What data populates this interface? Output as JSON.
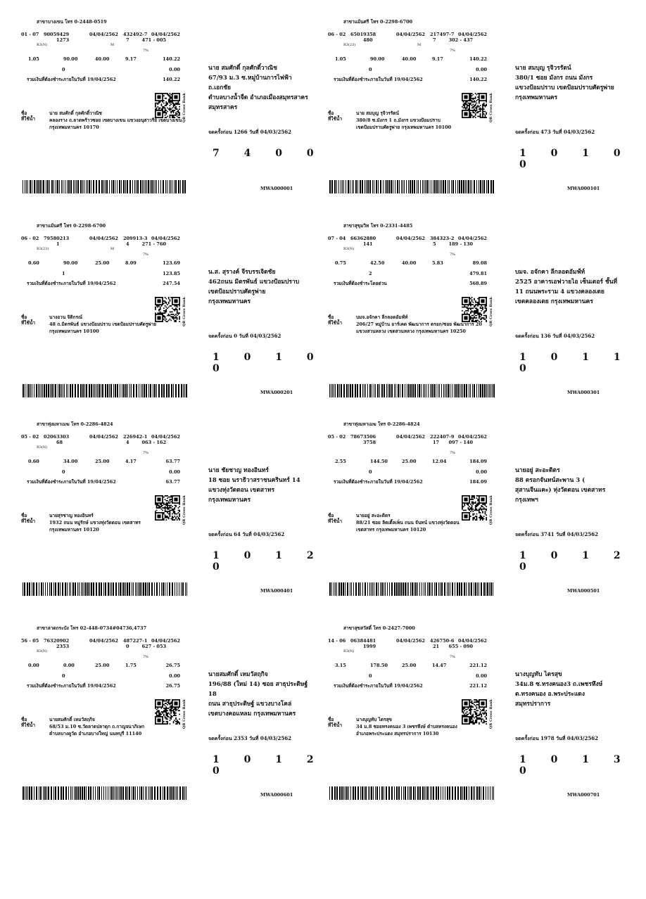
{
  "bills": [
    {
      "branch": "สาขาบางเขน โทร 0-2448-0519",
      "zone": "01 - 07",
      "meter_no": "90059429",
      "date1": "04/04/2562",
      "ref": "432492-7",
      "date2": "04/04/2562",
      "r2_a": "1273",
      "r2_b": "7",
      "r2_c": "471 - 005",
      "r3_code": "R3(N)",
      "r3_m": "M",
      "vat_pct": "7%",
      "usage": "1.05",
      "water": "90.00",
      "service": "40.00",
      "vat": "9.17",
      "total": "140.22",
      "arrear_n": "0",
      "arrear": "0.00",
      "due_label": "รวมเงินที่ต้องชำระภายในวันที่ 19/04/2562",
      "due_total": "140.22",
      "name_label": "ชื่อ",
      "addr_label": "ที่ใช้น้ำ",
      "name": "นาย สมศักดิ์ กุลศักดิ์วาณิช",
      "addr_line1": "คลองราง ถ.ลาดพร้าวซอย เขตบางเขน แขวงอนุสาวรีย์ เขตบางเขน",
      "addr_line2": "กรุงเทพมหานคร 10170",
      "qr_label": "QR Cross Bank",
      "mail_lines": [
        "นาย สมศักดิ์ กุลศักดิ์วาณิช",
        "67/93 ม.3 ซ.หมู่บ้านการไฟฟ้า ถ.เอกชัย",
        "ตำบลบางน้ำจืด อำเภอเมืองสมุทรสาคร",
        "สมุทรสาคร"
      ],
      "reading": "จดครั้งก่อน 1266 วันที่ 04/03/2562",
      "meter": "7400",
      "mwa": "MWA000001"
    },
    {
      "branch": "สาขาแม้นศรี โทร 0-2298-6700",
      "zone": "06 - 02",
      "meter_no": "65019358",
      "date1": "04/04/2562",
      "ref": "217497-7",
      "date2": "04/04/2562",
      "r2_a": "480",
      "r2_b": "7",
      "r2_c": "302 - 437",
      "r3_code": "R3(23)",
      "r3_m": "M",
      "vat_pct": "7%",
      "usage": "1.05",
      "water": "90.00",
      "service": "40.00",
      "vat": "9.17",
      "total": "140.22",
      "arrear_n": "0",
      "arrear": "0.00",
      "due_label": "รวมเงินที่ต้องชำระภายในวันที่ 19/04/2562",
      "due_total": "140.22",
      "name_label": "ชื่อ",
      "addr_label": "ที่ใช้น้ำ",
      "name": "นาย สมบุญ รุจิวรรัตน์",
      "addr_line1": "380/8 ซ.มังกร 1 ถ.มังกร แขวงป้อมปราบ",
      "addr_line2": "เขตป้อมปราบศัตรูพ่าย กรุงเทพมหานคร 10100",
      "qr_label": "QR Cross Bank",
      "mail_lines": [
        "นาย สมบุญ รุจิวรรัตน์",
        "380/1 ซอย มังกร ถนน มังกร",
        "แขวงป้อมปราบ เขตป้อมปราบศัตรูพ่าย",
        "กรุงเทพมหานคร"
      ],
      "reading": "จดครั้งก่อน 473 วันที่ 04/03/2562",
      "meter": "10100",
      "mwa": "MWA000101"
    },
    {
      "branch": "สาขาแม้นศรี โทร 0-2298-6700",
      "zone": "06 - 02",
      "meter_no": "79580213",
      "date1": "04/04/2562",
      "ref": "209913-3",
      "date2": "04/04/2562",
      "r2_a": "1",
      "r2_b": "4",
      "r2_c": "271 - 760",
      "r3_code": "R3(23)",
      "r3_m": "M",
      "vat_pct": "7%",
      "usage": "0.60",
      "water": "90.00",
      "service": "25.00",
      "vat": "8.09",
      "total": "123.69",
      "arrear_n": "1",
      "arrear": "123.85",
      "due_label": "รวมเงินที่ต้องชำระภายในวันที่ 19/04/2562",
      "due_total": "247.54",
      "name_label": "ชื่อ",
      "addr_label": "ที่ใช้น้ำ",
      "name": "นางอวน จิติกรณ์",
      "addr_line1": "48 ถ.มิตรพันธ์ แขวงป้อมปราบ เขตป้อมปราบศัตรูพ่าย",
      "addr_line2": "กรุงเทพมหานคร 10100",
      "qr_label": "QR Cross Bank",
      "mail_lines": [
        "น.ส. สุรางค์ จีรบรรเจิดชัย",
        "462ถนน มิตรพันธ์ แขวงป้อมปราบ",
        "เขตป้อมปราบศัตรูพ่าย",
        "กรุงเทพมหานคร"
      ],
      "reading": "จดครั้งก่อน 0 วันที่ 04/03/2562",
      "meter": "10100",
      "mwa": "MWA000201"
    },
    {
      "branch": "สาขาสุขุมวิท โทร 0-2331-4485",
      "zone": "07 - 04",
      "meter_no": "66362880",
      "date1": "04/04/2562",
      "ref": "384323-2",
      "date2": "04/04/2562",
      "r2_a": "141",
      "r2_b": "5",
      "r2_c": "189 - 130",
      "r3_code": "R3(N)",
      "r3_m": "",
      "vat_pct": "7%",
      "usage": "0.75",
      "water": "42.50",
      "service": "40.00",
      "vat": "5.83",
      "total": "89.08",
      "arrear_n": "2",
      "arrear": "479.81",
      "due_label": "รวมเงินที่ต้องชำระโดยด่วน",
      "due_total": "568.89",
      "name_label": "ชื่อ",
      "addr_label": "ที่ใช้น้ำ",
      "name": "บมจ.อจักคา ลีกลอดอัมฟ์ท์",
      "addr_line1": "206/27 หมู่บ้าน อาร์เคด พัฒนาการ ตรอก/ซอย พัฒนาการ 20",
      "addr_line2": "แขวงสวนหลวง เขตสวนหลวง กรุงเทพมหานคร 10250",
      "qr_label": "QR Cross Bank",
      "mail_lines": [
        "บมจ. อจักคา ลีกลอดอัมฟ์ท์",
        "2525 อาคารเอฟวายไอ เซ็นเตอร์ ชั้นที่",
        "11 ถนนพระราม 4 แขวงคลองเตย",
        "เขตคลองเตย กรุงเทพมหานคร"
      ],
      "reading": "จดครั้งก่อน 136 วันที่ 04/03/2562",
      "meter": "10110",
      "mwa": "MWA000301"
    },
    {
      "branch": "สาขาทุ่งมหาเมฆ โทร 0-2286-4824",
      "zone": "05 - 02",
      "meter_no": "02063303",
      "date1": "04/04/2562",
      "ref": "226942-1",
      "date2": "04/04/2562",
      "r2_a": "68",
      "r2_b": "4",
      "r2_c": "063 - 162",
      "r3_code": "R3(N)",
      "r3_m": "",
      "vat_pct": "7%",
      "usage": "0.60",
      "water": "34.00",
      "service": "25.00",
      "vat": "4.17",
      "total": "63.77",
      "arrear_n": "0",
      "arrear": "0.00",
      "due_label": "รวมเงินที่ต้องชำระภายในวันที่ 19/04/2562",
      "due_total": "63.77",
      "name_label": "ชื่อ",
      "addr_label": "ที่ใช้น้ำ",
      "name": "นายสุรชาญ ทองอินทร์",
      "addr_line1": "1932 ถนน หมู่รักษ์ แขวงทุ่งวัดดอน เขตสาทร",
      "addr_line2": "กรุงเทพมหานคร 10120",
      "qr_label": "QR Cross Bank",
      "mail_lines": [
        "นาย ชัยชาญ ทองอินทร์",
        "18 ซอย นราธิวาสราชนครินทร์ 14",
        "แขวงทุ่งวัดดอน เขตสาทร",
        "กรุงเทพมหานคร"
      ],
      "reading": "จดครั้งก่อน 64 วันที่ 04/03/2562",
      "meter": "10120",
      "mwa": "MWA000401"
    },
    {
      "branch": "สาขาทุ่งมหาเมฆ โทร 0-2286-4824",
      "zone": "05 - 02",
      "meter_no": "78673506",
      "date1": "04/04/2562",
      "ref": "222407-9",
      "date2": "04/04/2562",
      "r2_a": "3758",
      "r2_b": "17",
      "r2_c": "097 - 140",
      "r3_code": "",
      "r3_m": "",
      "vat_pct": "7%",
      "usage": "2.55",
      "water": "144.50",
      "service": "25.00",
      "vat": "12.04",
      "total": "184.09",
      "arrear_n": "0",
      "arrear": "0.00",
      "due_label": "รวมเงินที่ต้องชำระภายในวันที่ 19/04/2562",
      "due_total": "184.09",
      "name_label": "ชื่อ",
      "addr_label": "ที่ใช้น้ำ",
      "name": "นายอยู่ สะอะดิตร",
      "addr_line1": "88/21 ซอย ลิตเติ้ลเพ็น ถนน จันทน์ แขวงทุ่งวัดดอน",
      "addr_line2": "เขตสาทร กรุงเทพมหานคร 10120",
      "qr_label": "QR Cross Bank",
      "mail_lines": [
        "นายอยู่ สะอะดิตร",
        "88 ตรอกจันทน์สะพาน 3 (",
        "สุสานจีนแคะ) ทุ่งวัดดอน เขตสาทร",
        "กรุงเทพฯ"
      ],
      "reading": "จดครั้งก่อน 3741 วันที่ 04/03/2562",
      "meter": "10120",
      "mwa": "MWA000501"
    },
    {
      "branch": "สาขาลาดกระบัง โทร 02-448-0734#04736,4737",
      "zone": "56 - 05",
      "meter_no": "76320902",
      "date1": "04/04/2562",
      "ref": "487227-1",
      "date2": "04/04/2562",
      "r2_a": "2353",
      "r2_b": "0",
      "r2_c": "627 - 053",
      "r3_code": "R3(N)",
      "r3_m": "",
      "vat_pct": "7%",
      "usage": "0.00",
      "water": "0.00",
      "service": "25.00",
      "vat": "1.75",
      "total": "26.75",
      "arrear_n": "0",
      "arrear": "0.00",
      "due_label": "รวมเงินที่ต้องชำระภายในวันที่ 19/04/2562",
      "due_total": "26.75",
      "name_label": "ชื่อ",
      "addr_label": "ที่ใช้น้ำ",
      "name": "นายสมศักดิ์ เหมวัสฤกิจ",
      "addr_line1": "68/53 ม.10 ซ.วัดลาดปลาดุก ถ.กาญจนาภิเษก",
      "addr_line2": "ตำบลบางคูวัด อำเภอบางใหญ่ นนทบุรี 11140",
      "qr_label": "QR Cross Bank",
      "mail_lines": [
        "นายสมศักดิ์ เหมวัสฤกิจ",
        "196/88 (ใหม่ 14) ซอย สาธุประดิษฐ์ 18",
        "ถนน สาธุประดิษฐ์ แขวงบางโคล่",
        "เขตบางคอแหลม กรุงเทพมหานคร"
      ],
      "reading": "จดครั้งก่อน 2353 วันที่ 04/03/2562",
      "meter": "10120",
      "mwa": "MWA000601"
    },
    {
      "branch": "สาขาสุขสวัสดิ์ โทร 0-2427-7000",
      "zone": "14 - 06",
      "meter_no": "06384481",
      "date1": "04/04/2562",
      "ref": "426750-6",
      "date2": "04/04/2562",
      "r2_a": "1999",
      "r2_b": "21",
      "r2_c": "655 - 090",
      "r3_code": "R3(N)",
      "r3_m": "",
      "vat_pct": "7%",
      "usage": "3.15",
      "water": "178.50",
      "service": "25.00",
      "vat": "14.47",
      "total": "221.12",
      "arrear_n": "0",
      "arrear": "0.00",
      "due_label": "รวมเงินที่ต้องชำระภายในวันที่ 19/04/2562",
      "due_total": "221.12",
      "name_label": "ชื่อ",
      "addr_label": "ที่ใช้น้ำ",
      "name": "นางบุญทับ ไตรสุข",
      "addr_line1": "34 ม.8 ซอยทรงคนอง 3 เพชรหึงษ์ ตำบลทรงคนอง",
      "addr_line2": "อำเภอพระประแดง สมุทรปราการ 10130",
      "qr_label": "QR Cross Bank",
      "mail_lines": [
        "นางบุญทับ ไตรสุข",
        "34ม.8 ซ.ทรงคนอง3 ถ.เพชรหึงษ์",
        "ต.ทรงคนอง อ.พระประแดง",
        "สมุทรปราการ"
      ],
      "reading": "จดครั้งก่อน 1978 วันที่ 04/03/2562",
      "meter": "10130",
      "mwa": "MWA000701"
    }
  ]
}
